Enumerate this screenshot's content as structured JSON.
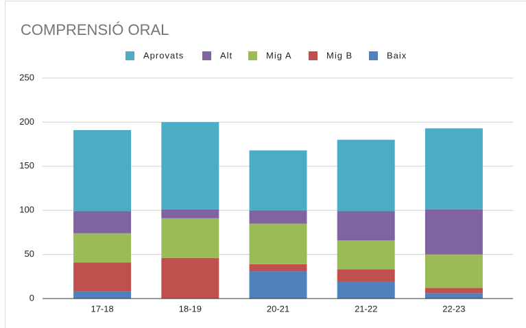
{
  "chart_data": {
    "type": "stacked_bar",
    "title": "COMPRENSIÓ ORAL",
    "categories": [
      "17-18",
      "18-19",
      "20-21",
      "21-22",
      "22-23"
    ],
    "series": [
      {
        "name": "Aprovats",
        "color": "#4bacc6",
        "values": [
          92,
          99,
          68,
          81,
          92
        ]
      },
      {
        "name": "Alt",
        "color": "#8064a2",
        "values": [
          25,
          10,
          15,
          33,
          51
        ]
      },
      {
        "name": "Mig A",
        "color": "#9bbb59",
        "values": [
          33,
          45,
          46,
          33,
          38
        ]
      },
      {
        "name": "Mig B",
        "color": "#c0504d",
        "values": [
          33,
          46,
          8,
          14,
          6
        ]
      },
      {
        "name": "Baix",
        "color": "#4f81bd",
        "values": [
          8,
          0,
          31,
          19,
          6
        ]
      }
    ],
    "ylim": [
      0,
      250
    ],
    "yticks": [
      0,
      50,
      100,
      150,
      200,
      250
    ],
    "grid": true,
    "legend": "top"
  }
}
